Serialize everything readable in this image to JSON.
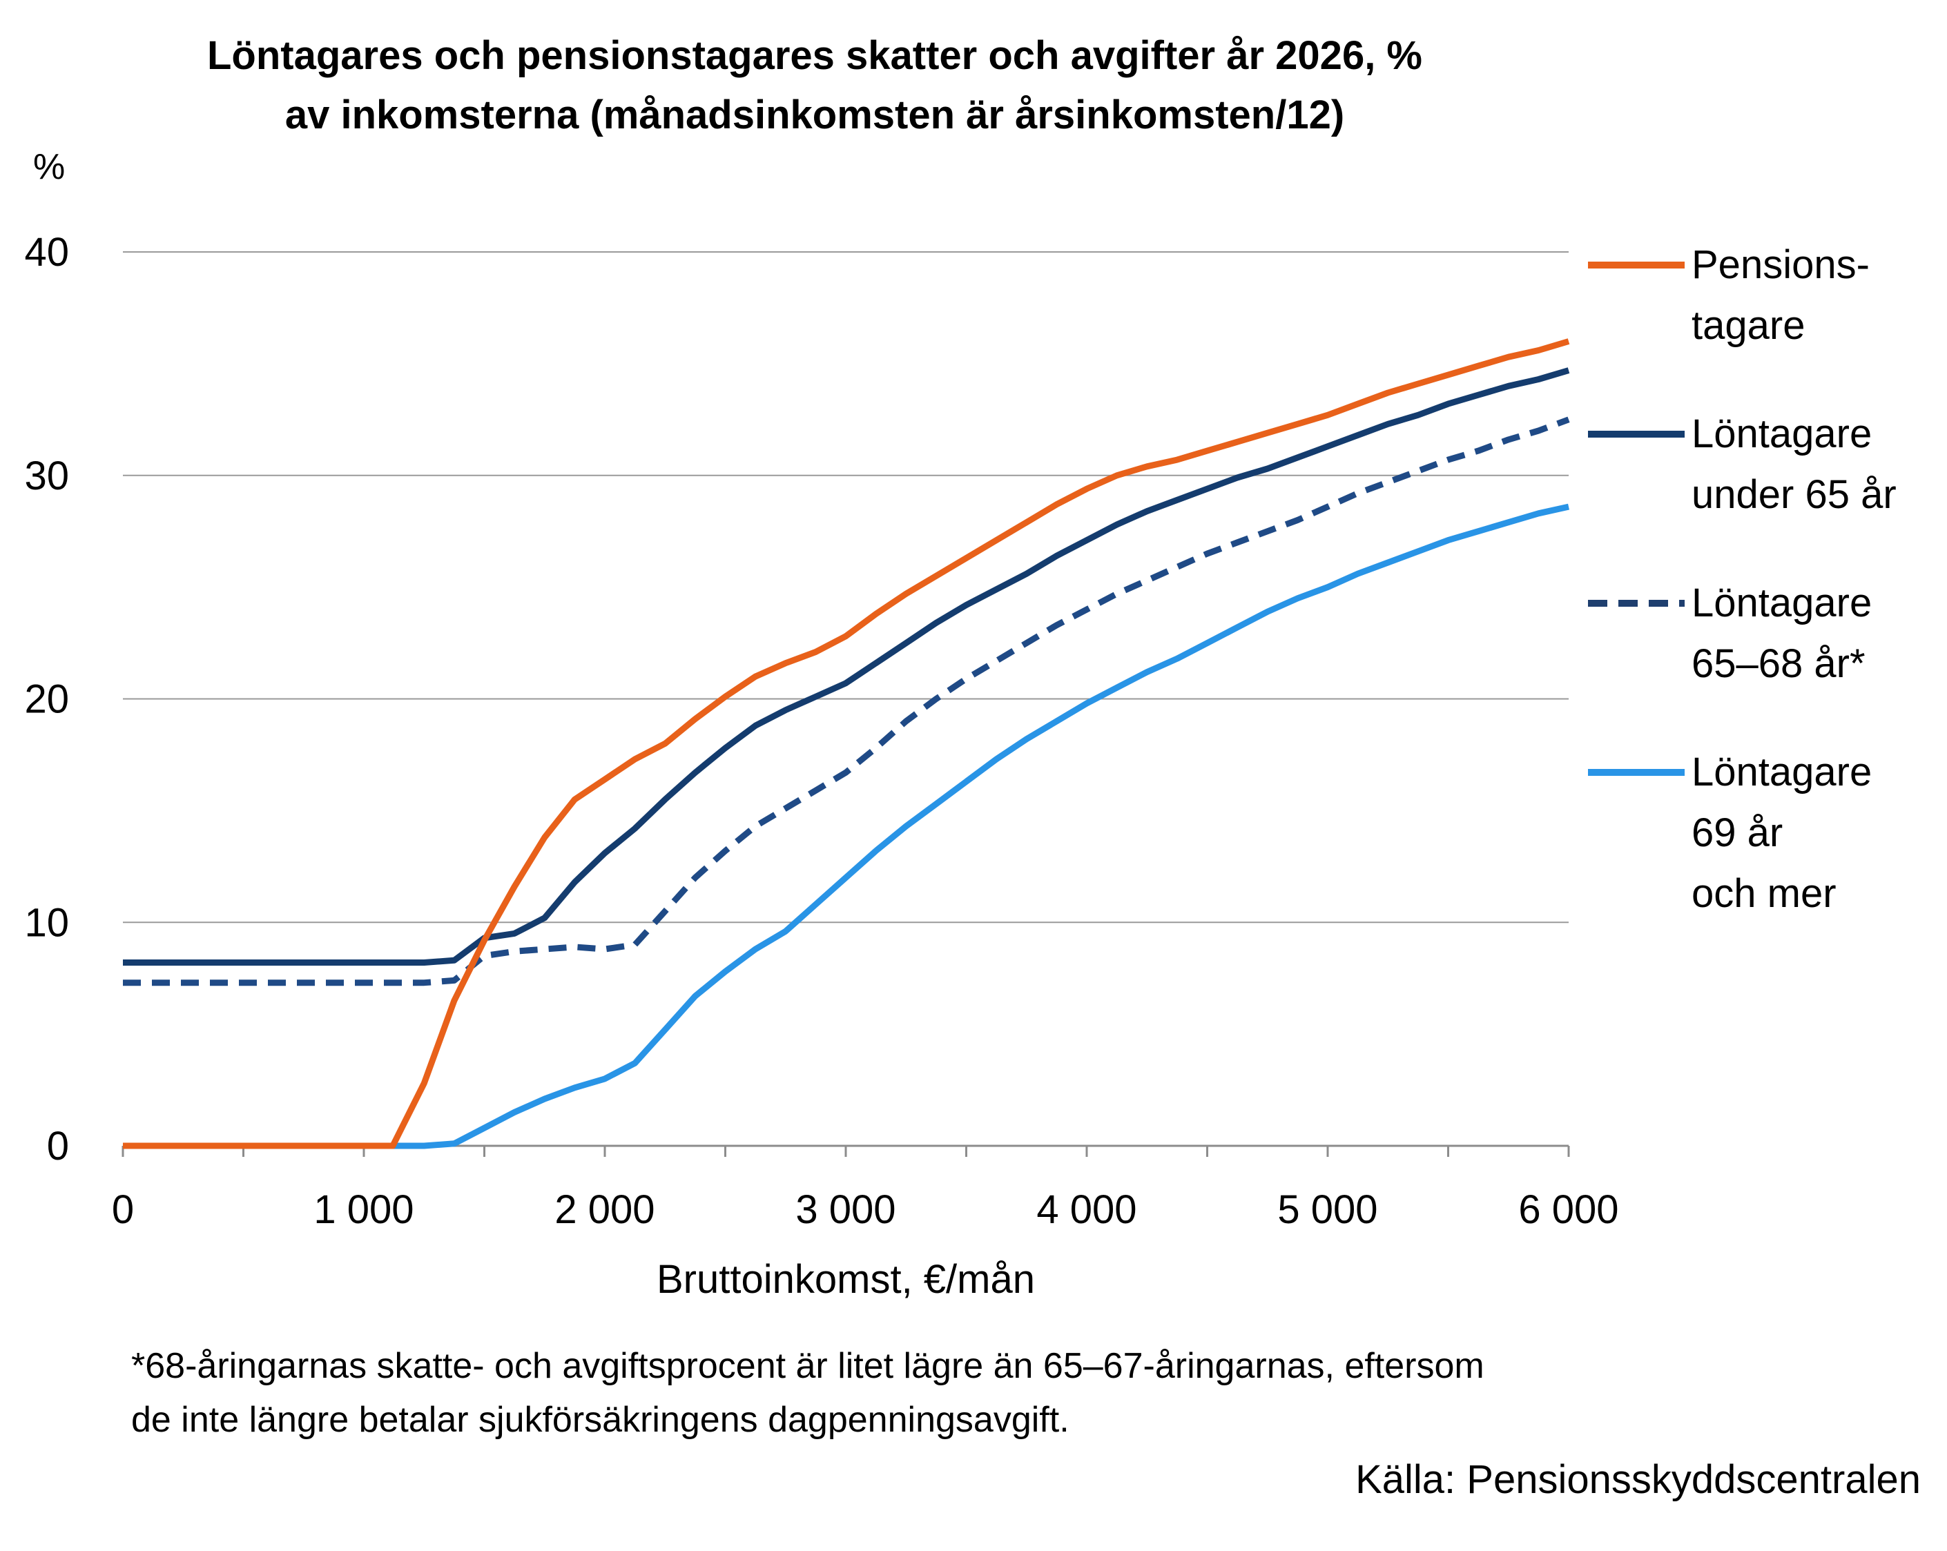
{
  "title": {
    "line1": "Löntagares och pensionstagares skatter och avgifter år 2026, %",
    "line2": "av inkomsterna (månadsinkomsten är årsinkomsten/12)"
  },
  "footnote": {
    "line1": "*68-åringarnas skatte- och avgiftsprocent är litet lägre än 65–67-åringarnas, eftersom",
    "line2": "de inte längre betalar sjukförsäkringens dagpenningsavgift."
  },
  "source": "Källa: Pensionsskyddscentralen",
  "colors": {
    "pension": "#e8611a",
    "under65": "#143c6e",
    "age65_68": "#1f4a86",
    "age69": "#2994e6",
    "grid": "#9a9a9a",
    "axis": "#8c8c8c"
  },
  "chart_data": {
    "type": "line",
    "title": "Löntagares och pensionstagares skatter och avgifter år 2026, % av inkomsterna (månadsinkomsten är årsinkomsten/12)",
    "xlabel": "Bruttoinkomst, €/mån",
    "ylabel": "%",
    "xlim": [
      0,
      6000
    ],
    "ylim": [
      0,
      40
    ],
    "xticks": [
      0,
      1000,
      2000,
      3000,
      4000,
      5000,
      6000
    ],
    "xtick_labels": [
      "0",
      "1 000",
      "2 000",
      "3 000",
      "4 000",
      "5 000",
      "6 000"
    ],
    "yticks": [
      0,
      10,
      20,
      30,
      40
    ],
    "ytick_labels": [
      "0",
      "10",
      "20",
      "30",
      "40"
    ],
    "grid": true,
    "legend_position": "right",
    "series": [
      {
        "name": "Pensionstagare",
        "legend_lines": [
          "Pensions-",
          "tagare"
        ],
        "color": "#e8611a",
        "dashed": false,
        "x": [
          0,
          1120,
          1250,
          1375,
          1500,
          1625,
          1750,
          1875,
          2000,
          2125,
          2250,
          2375,
          2500,
          2625,
          2750,
          2875,
          3000,
          3125,
          3250,
          3375,
          3500,
          3625,
          3750,
          3875,
          4000,
          4125,
          4250,
          4375,
          4500,
          4625,
          4750,
          4875,
          5000,
          5125,
          5250,
          5375,
          5500,
          5625,
          5750,
          5875,
          6000
        ],
        "y": [
          0,
          0,
          2.8,
          6.5,
          9.2,
          11.6,
          13.8,
          15.5,
          16.4,
          17.3,
          18.0,
          19.1,
          20.1,
          21.0,
          21.6,
          22.1,
          22.8,
          23.8,
          24.7,
          25.5,
          26.3,
          27.1,
          27.9,
          28.7,
          29.4,
          30.0,
          30.4,
          30.7,
          31.1,
          31.5,
          31.9,
          32.3,
          32.7,
          33.2,
          33.7,
          34.1,
          34.5,
          34.9,
          35.3,
          35.6,
          36.0
        ]
      },
      {
        "name": "Löntagare under 65 år",
        "legend_lines": [
          "Löntagare",
          "under 65 år"
        ],
        "color": "#143c6e",
        "dashed": false,
        "x": [
          0,
          1250,
          1375,
          1500,
          1625,
          1750,
          1875,
          2000,
          2125,
          2250,
          2375,
          2500,
          2625,
          2750,
          2875,
          3000,
          3125,
          3250,
          3375,
          3500,
          3625,
          3750,
          3875,
          4000,
          4125,
          4250,
          4375,
          4500,
          4625,
          4750,
          4875,
          5000,
          5125,
          5250,
          5375,
          5500,
          5625,
          5750,
          5875,
          6000
        ],
        "y": [
          8.2,
          8.2,
          8.3,
          9.3,
          9.5,
          10.2,
          11.8,
          13.1,
          14.2,
          15.5,
          16.7,
          17.8,
          18.8,
          19.5,
          20.1,
          20.7,
          21.6,
          22.5,
          23.4,
          24.2,
          24.9,
          25.6,
          26.4,
          27.1,
          27.8,
          28.4,
          28.9,
          29.4,
          29.9,
          30.3,
          30.8,
          31.3,
          31.8,
          32.3,
          32.7,
          33.2,
          33.6,
          34.0,
          34.3,
          34.7
        ]
      },
      {
        "name": "Löntagare 65–68 år*",
        "legend_lines": [
          "Löntagare",
          "65–68 år*"
        ],
        "color": "#1f4a86",
        "dashed": true,
        "x": [
          0,
          1250,
          1375,
          1500,
          1625,
          1750,
          1875,
          2000,
          2125,
          2250,
          2375,
          2500,
          2625,
          2750,
          2875,
          3000,
          3125,
          3250,
          3375,
          3500,
          3625,
          3750,
          3875,
          4000,
          4125,
          4250,
          4375,
          4500,
          4625,
          4750,
          4875,
          5000,
          5125,
          5250,
          5375,
          5500,
          5625,
          5750,
          5875,
          6000
        ],
        "y": [
          7.3,
          7.3,
          7.4,
          8.5,
          8.7,
          8.8,
          8.9,
          8.8,
          9.0,
          10.5,
          12.0,
          13.2,
          14.3,
          15.1,
          15.9,
          16.7,
          17.8,
          19.0,
          20.0,
          20.9,
          21.7,
          22.5,
          23.3,
          24.0,
          24.7,
          25.3,
          25.9,
          26.5,
          27.0,
          27.5,
          28.0,
          28.6,
          29.2,
          29.7,
          30.2,
          30.7,
          31.1,
          31.6,
          32.0,
          32.5
        ]
      },
      {
        "name": "Löntagare 69 år och mer",
        "legend_lines": [
          "Löntagare",
          "69 år",
          "och mer"
        ],
        "color": "#2994e6",
        "dashed": false,
        "x": [
          0,
          1250,
          1375,
          1500,
          1625,
          1750,
          1875,
          2000,
          2125,
          2250,
          2375,
          2500,
          2625,
          2750,
          2875,
          3000,
          3125,
          3250,
          3375,
          3500,
          3625,
          3750,
          3875,
          4000,
          4125,
          4250,
          4375,
          4500,
          4625,
          4750,
          4875,
          5000,
          5125,
          5250,
          5375,
          5500,
          5625,
          5750,
          5875,
          6000
        ],
        "y": [
          0,
          0,
          0.1,
          0.8,
          1.5,
          2.1,
          2.6,
          3.0,
          3.7,
          5.2,
          6.7,
          7.8,
          8.8,
          9.6,
          10.8,
          12.0,
          13.2,
          14.3,
          15.3,
          16.3,
          17.3,
          18.2,
          19.0,
          19.8,
          20.5,
          21.2,
          21.8,
          22.5,
          23.2,
          23.9,
          24.5,
          25.0,
          25.6,
          26.1,
          26.6,
          27.1,
          27.5,
          27.9,
          28.3,
          28.6
        ]
      }
    ]
  }
}
